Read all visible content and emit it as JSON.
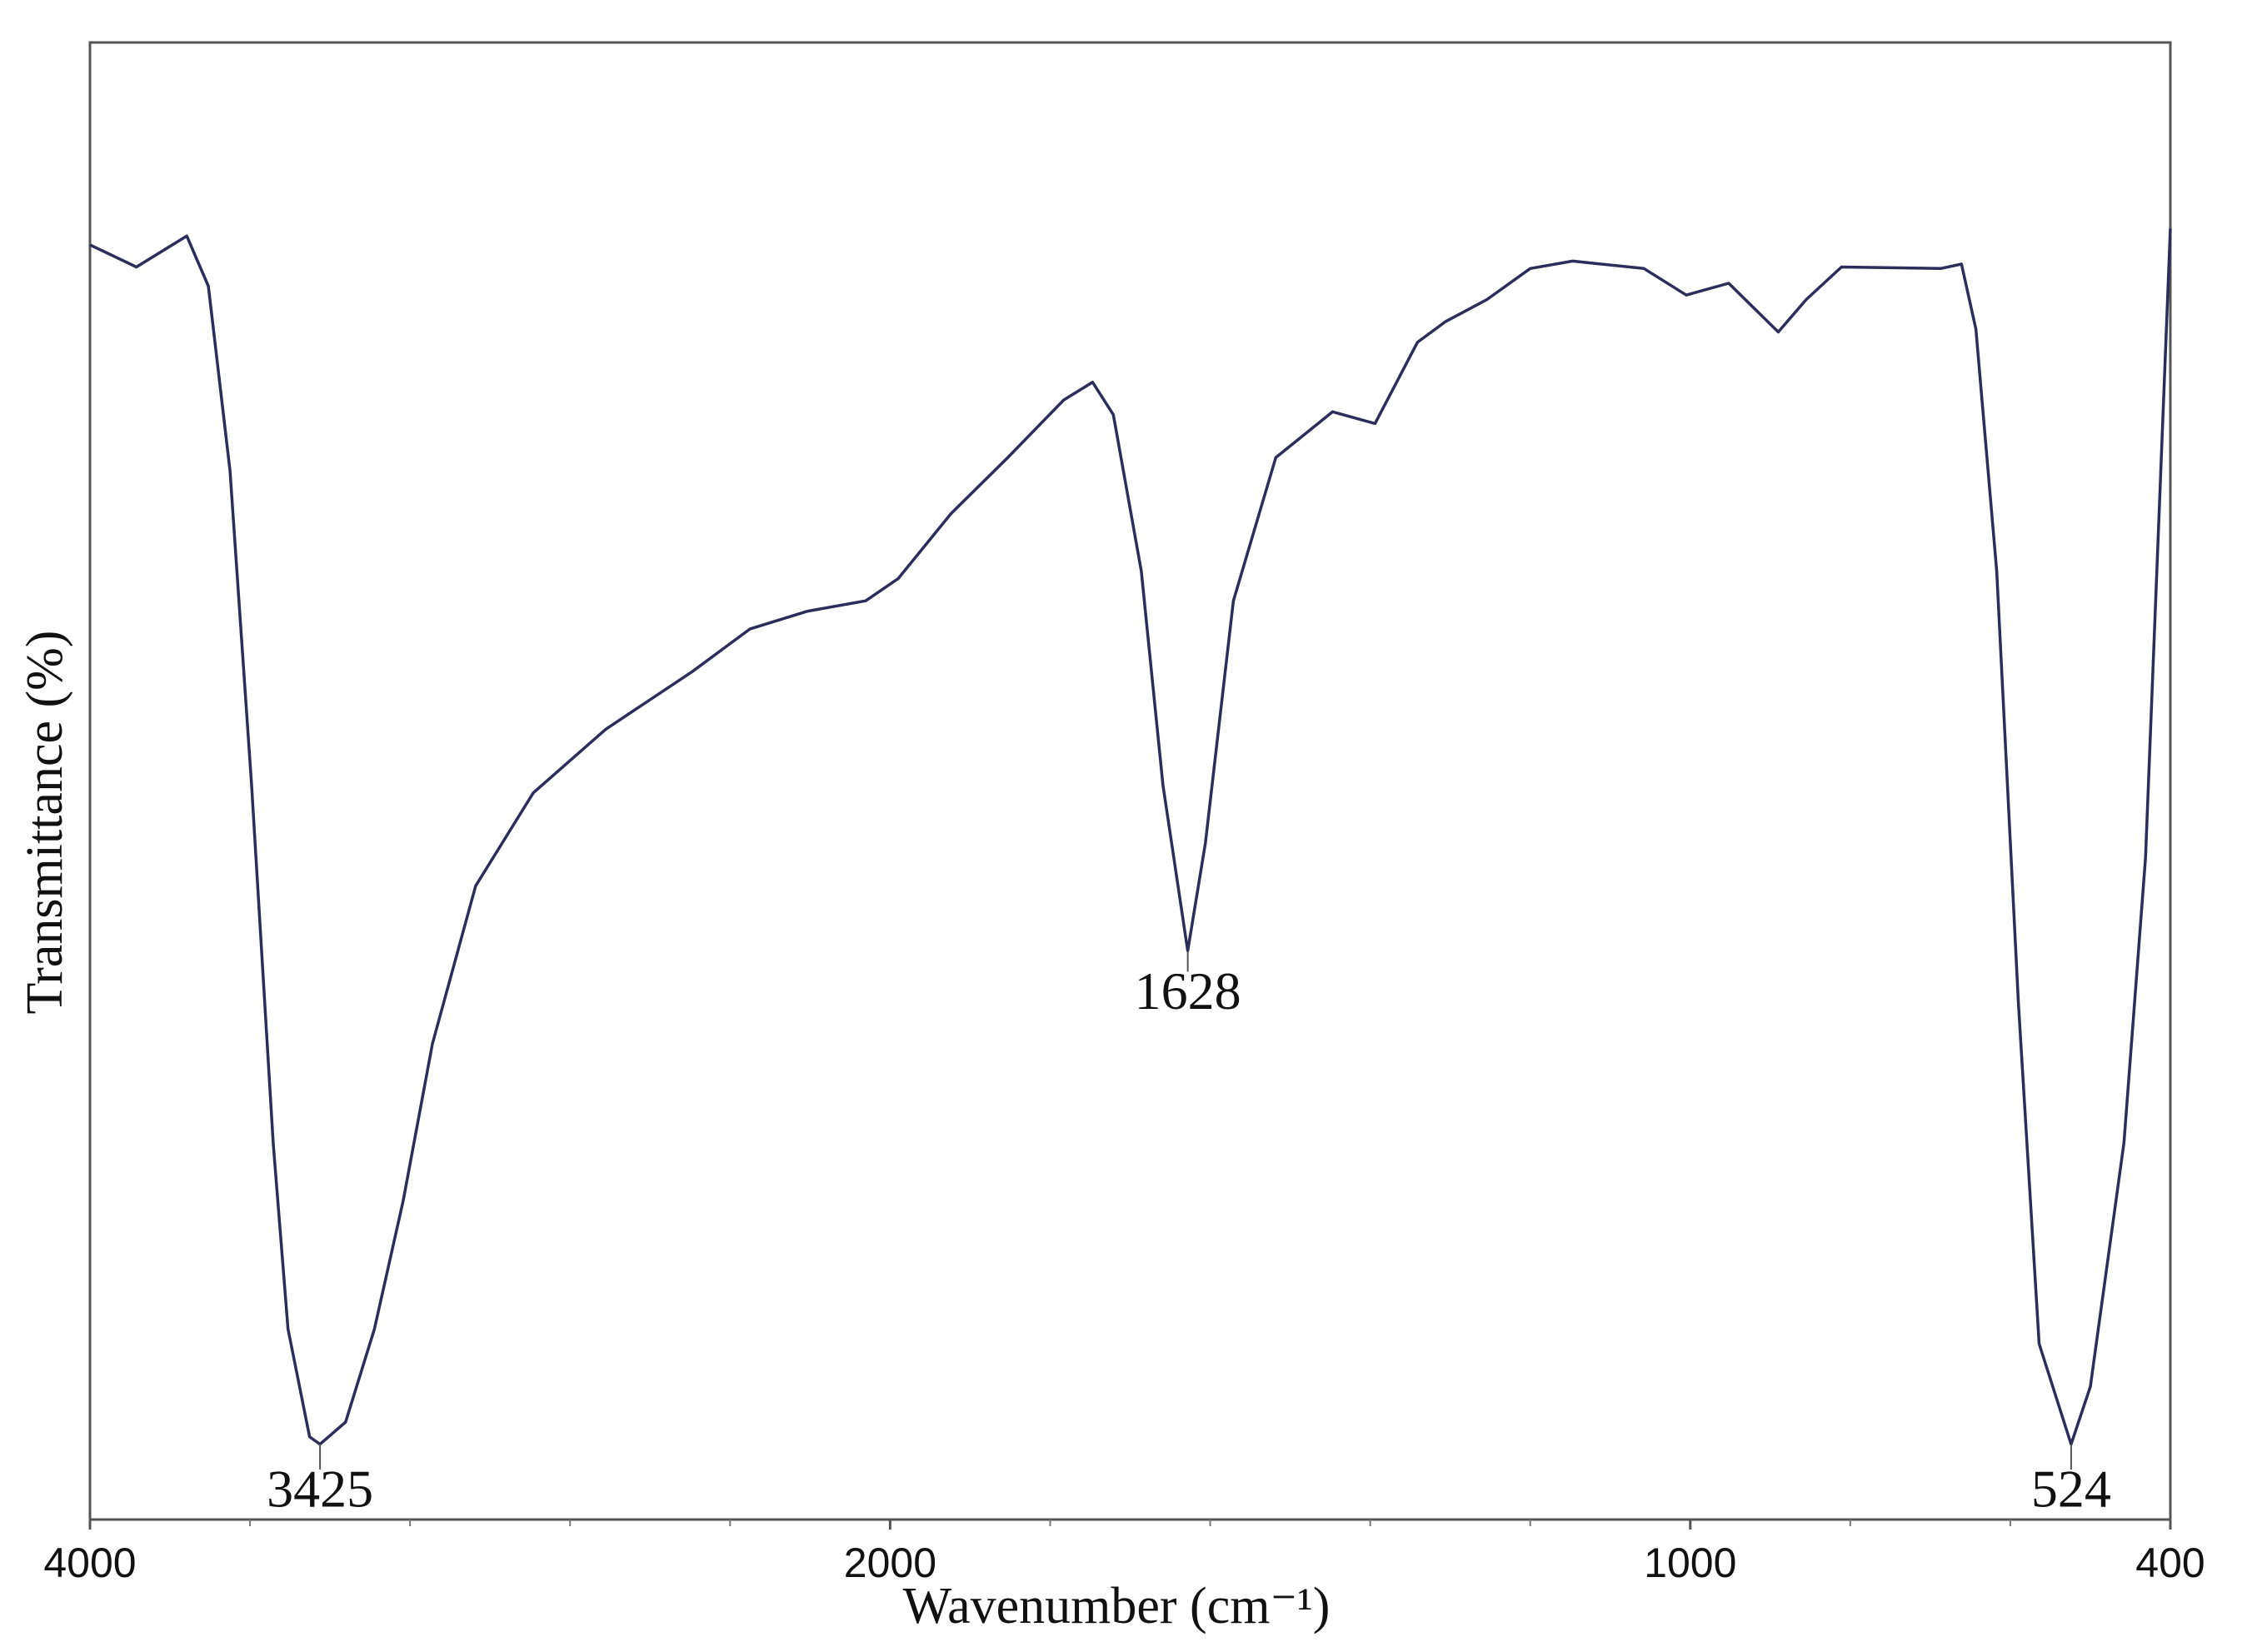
{
  "chart_data": {
    "type": "line",
    "xlabel": "Wavenumber (cm⁻¹)",
    "ylabel": "Transmittance (%)",
    "xlim": [
      4000,
      400
    ],
    "xticks": [
      4000,
      2000,
      1000,
      400
    ],
    "xminor_ticks": [
      3600,
      3200,
      2800,
      2400,
      1800,
      1600,
      1400,
      1200,
      800,
      600
    ],
    "x_scale": {
      "type": "split",
      "split_at": 2000,
      "expansion": 2
    },
    "ylim": [
      0,
      100
    ],
    "series": [
      {
        "color": "#2b2d5a",
        "x": [
          4000,
          3884,
          3758,
          3704,
          3650,
          3596,
          3542,
          3505,
          3451,
          3425,
          3361,
          3289,
          3217,
          3144,
          3036,
          2892,
          2711,
          2495,
          2350,
          2206,
          2061,
          1990,
          1924,
          1853,
          1783,
          1747,
          1721,
          1686,
          1659,
          1628,
          1606,
          1571,
          1518,
          1447,
          1394,
          1341,
          1306,
          1254,
          1200,
          1147,
          1058,
          1005,
          952,
          890,
          855,
          811,
          687,
          661,
          643,
          617,
          590,
          564,
          524,
          500,
          458,
          431,
          400
        ],
        "values": [
          86.3,
          84.8,
          86.9,
          83.5,
          71,
          49.7,
          25.5,
          12.9,
          5.6,
          5.1,
          6.6,
          12.9,
          21.6,
          32.2,
          42.9,
          49.2,
          53.5,
          57.4,
          60.3,
          61.5,
          62.2,
          63.7,
          68.1,
          71.9,
          75.8,
          77,
          74.8,
          64.2,
          49.7,
          38.5,
          45.8,
          62.2,
          71.9,
          75,
          74.2,
          79.7,
          81.1,
          82.6,
          84.7,
          85.2,
          84.7,
          82.9,
          83.7,
          80.4,
          82.6,
          84.8,
          84.7,
          85,
          80.6,
          64.2,
          35.1,
          11.9,
          5.1,
          9,
          25.5,
          44.8,
          87.4
        ]
      }
    ],
    "annotations": [
      {
        "label": "3425",
        "x": 3425,
        "y": 5.1,
        "position": "bottom"
      },
      {
        "label": "1628",
        "x": 1628,
        "y": 38.5,
        "position": "below"
      },
      {
        "label": "524",
        "x": 524,
        "y": 5.1,
        "position": "bottom"
      }
    ]
  }
}
